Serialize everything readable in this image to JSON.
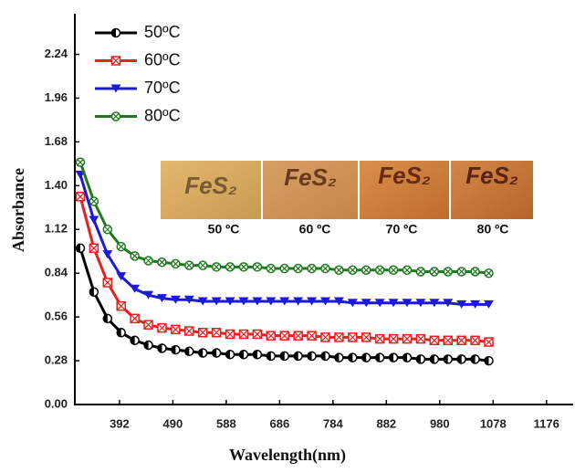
{
  "chart_data": {
    "type": "line",
    "x_label": "Wavelength(nm)",
    "y_label": "Absorbance",
    "x": [
      320,
      345,
      370,
      395,
      420,
      445,
      470,
      495,
      520,
      545,
      570,
      595,
      620,
      645,
      670,
      695,
      720,
      745,
      770,
      795,
      820,
      845,
      870,
      895,
      920,
      945,
      970,
      995,
      1020,
      1045,
      1070
    ],
    "series": [
      {
        "name": "50ºC",
        "color": "#000000",
        "marker": "circle",
        "values": [
          1.0,
          0.72,
          0.55,
          0.46,
          0.41,
          0.38,
          0.36,
          0.35,
          0.34,
          0.33,
          0.33,
          0.32,
          0.32,
          0.32,
          0.31,
          0.31,
          0.31,
          0.31,
          0.31,
          0.3,
          0.3,
          0.3,
          0.3,
          0.3,
          0.3,
          0.29,
          0.29,
          0.29,
          0.29,
          0.29,
          0.28
        ]
      },
      {
        "name": "60ºC",
        "color": "#e8201e",
        "marker": "square-x",
        "values": [
          1.33,
          1.0,
          0.78,
          0.63,
          0.55,
          0.51,
          0.49,
          0.48,
          0.47,
          0.46,
          0.46,
          0.45,
          0.45,
          0.45,
          0.44,
          0.44,
          0.44,
          0.44,
          0.43,
          0.43,
          0.43,
          0.43,
          0.42,
          0.42,
          0.42,
          0.42,
          0.41,
          0.41,
          0.41,
          0.41,
          0.4
        ]
      },
      {
        "name": "70ºC",
        "color": "#1a1ad8",
        "marker": "triangle",
        "values": [
          1.47,
          1.18,
          0.96,
          0.82,
          0.74,
          0.7,
          0.68,
          0.67,
          0.67,
          0.66,
          0.66,
          0.66,
          0.66,
          0.66,
          0.66,
          0.66,
          0.66,
          0.66,
          0.66,
          0.66,
          0.65,
          0.65,
          0.65,
          0.65,
          0.65,
          0.65,
          0.65,
          0.65,
          0.64,
          0.64,
          0.64
        ]
      },
      {
        "name": "80ºC",
        "color": "#1f7a1f",
        "marker": "circle-x",
        "values": [
          1.55,
          1.3,
          1.12,
          1.01,
          0.95,
          0.92,
          0.91,
          0.9,
          0.89,
          0.89,
          0.88,
          0.88,
          0.88,
          0.88,
          0.87,
          0.87,
          0.87,
          0.87,
          0.87,
          0.86,
          0.86,
          0.86,
          0.86,
          0.86,
          0.86,
          0.85,
          0.85,
          0.85,
          0.85,
          0.85,
          0.84
        ]
      }
    ],
    "xlim": [
      310,
      1225
    ],
    "ylim": [
      0,
      2.5
    ],
    "xticks": [
      392,
      490,
      588,
      686,
      784,
      882,
      980,
      1078,
      1176
    ],
    "yticks": [
      {
        "value": 0,
        "label": "0.00"
      },
      0.28,
      0.56,
      0.84,
      1.12,
      {
        "value": 1.4,
        "label": "1.40"
      },
      1.68,
      1.96,
      2.24
    ],
    "inset": [
      {
        "text": "FeS₂",
        "label": "50 ºC"
      },
      {
        "text": "FeS₂",
        "label": "60 ºC"
      },
      {
        "text": "FeS₂",
        "label": "70 ºC"
      },
      {
        "text": "FeS₂",
        "label": "80 ºC"
      }
    ]
  }
}
